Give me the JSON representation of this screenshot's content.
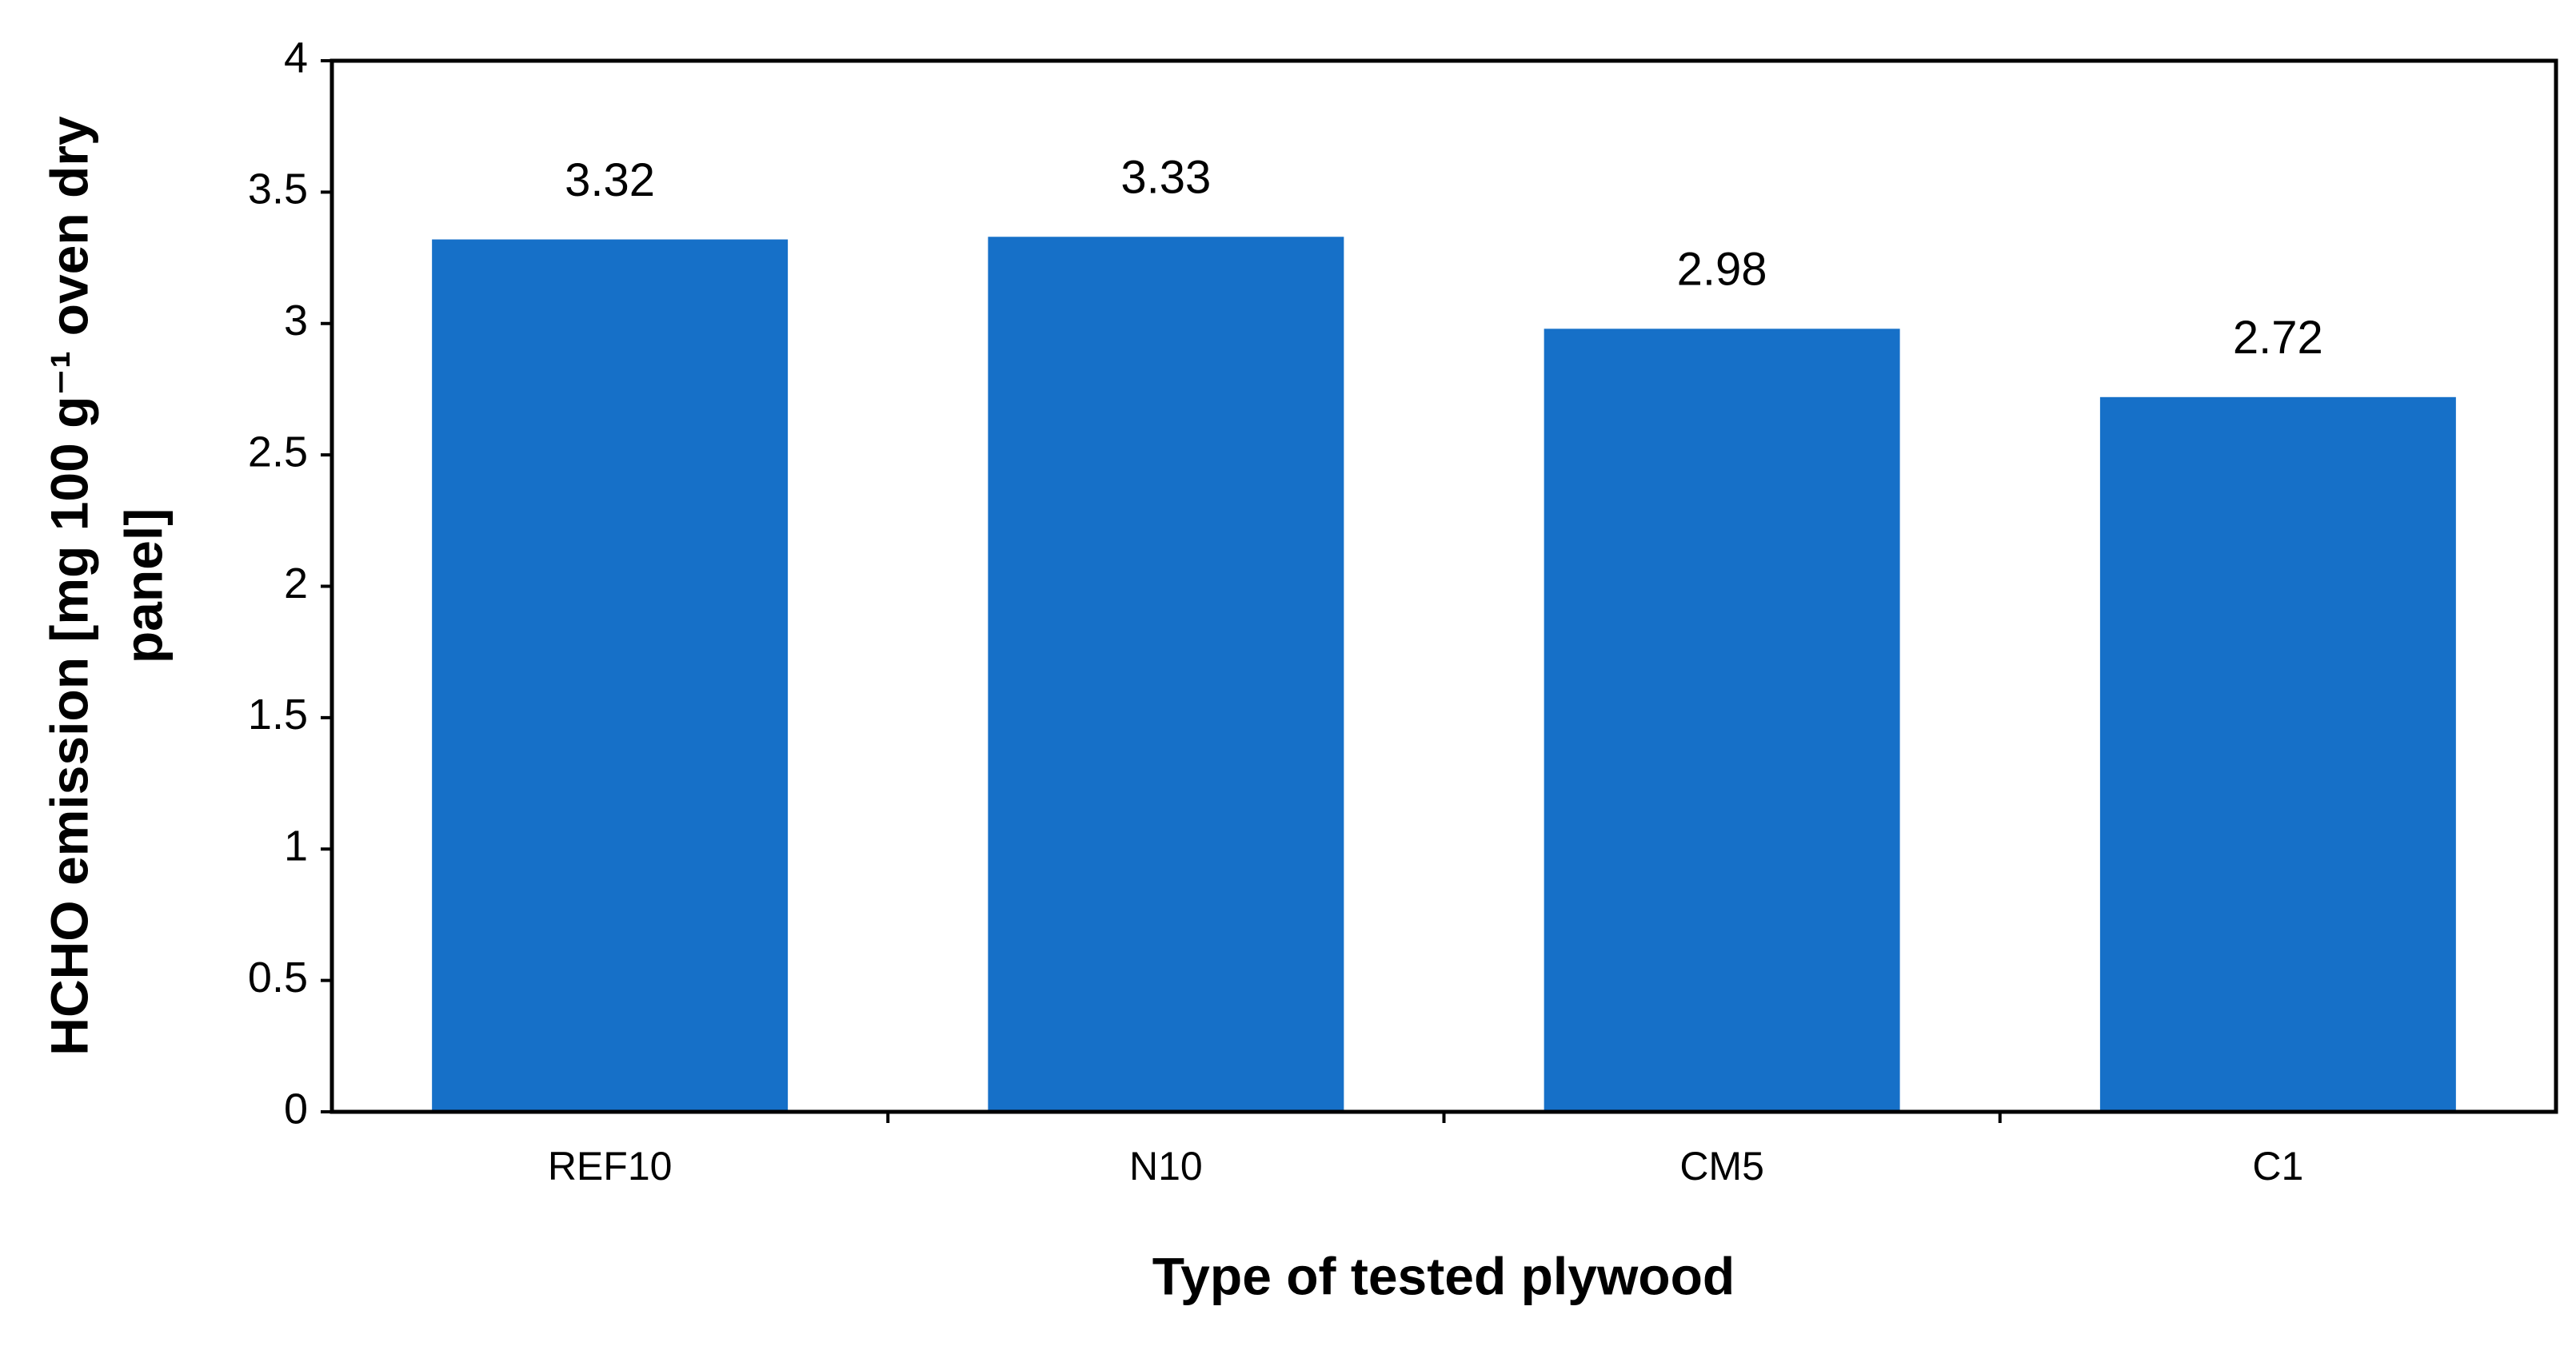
{
  "chart_data": {
    "type": "bar",
    "xlabel": "Type of tested plywood",
    "ylabel": [
      "HCHO emission [mg 100 g⁻¹ oven dry",
      "panel]"
    ],
    "categories": [
      "REF10",
      "N10",
      "CM5",
      "C1"
    ],
    "values": [
      3.32,
      3.33,
      2.98,
      2.72
    ],
    "color": "#1670c8",
    "ylim": [
      0,
      4
    ],
    "yticks": [
      0,
      0.5,
      1,
      1.5,
      2,
      2.5,
      3,
      3.5,
      4
    ],
    "grid": false
  }
}
